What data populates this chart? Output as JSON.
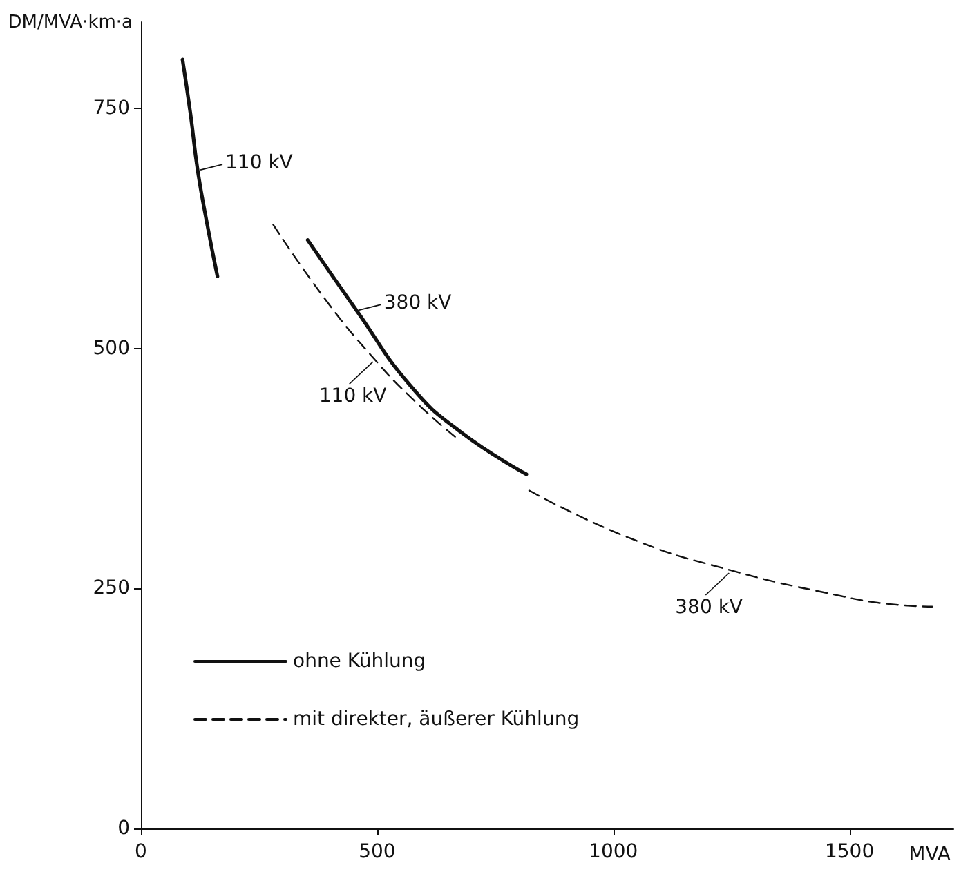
{
  "chart_data": {
    "type": "line",
    "xlabel": "MVA",
    "ylabel": "DM/MVA·km·a",
    "xlim": [
      0,
      1720
    ],
    "xticks": [
      0,
      500,
      1000,
      1500
    ],
    "ylim": [
      0,
      840
    ],
    "yticks": [
      0,
      250,
      500,
      750
    ],
    "grid": false,
    "legend": "bottom left",
    "marker": "none",
    "series": [
      {
        "name": "ohne Kühlung",
        "color": "#111111",
        "line_style": "solid",
        "x": [
          88,
          105,
          120,
          140,
          162
        ],
        "values": [
          801,
          744,
          686,
          630,
          575
        ]
      },
      {
        "color": "#111111",
        "line_style": "solid",
        "x": [
          353,
          456,
          571,
          677,
          816
        ],
        "values": [
          613,
          540,
          461,
          413,
          369
        ]
      },
      {
        "name": "mit direkter, äußerer Kühlung",
        "color": "#111111",
        "line_style": "dashed",
        "x": [
          280,
          389,
          494,
          580,
          665
        ],
        "values": [
          629,
          552,
          489,
          445,
          408
        ]
      },
      {
        "color": "#111111",
        "line_style": "dashed",
        "x": [
          822,
          1032,
          1248,
          1483,
          1579,
          1675
        ],
        "values": [
          352,
          303,
          269,
          242,
          234,
          231
        ]
      }
    ],
    "annotations": [
      {
        "text": "110 kV",
        "x": 120,
        "y": 686
      },
      {
        "text": "380 kV",
        "x": 456,
        "y": 540
      },
      {
        "text": "110 kV",
        "x": 494,
        "y": 489
      },
      {
        "text": "380 kV",
        "x": 1248,
        "y": 269
      }
    ]
  }
}
